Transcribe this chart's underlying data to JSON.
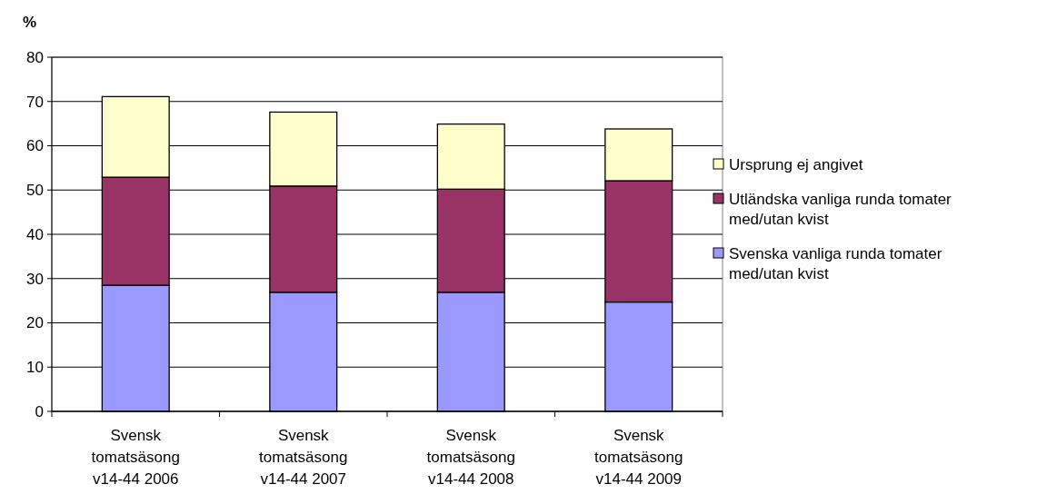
{
  "chart_data": {
    "type": "bar",
    "stacked": true,
    "ylabel": "%",
    "categories": [
      "Svensk tomatsäsong v14-44 2006",
      "Svensk tomatsäsong v14-44 2007",
      "Svensk tomatsäsong v14-44 2008",
      "Svensk tomatsäsong v14-44 2009"
    ],
    "series": [
      {
        "name": "Svenska vanliga runda tomater med/utan kvist",
        "color": "#9999ff",
        "values": [
          28.5,
          26.9,
          26.9,
          24.7
        ]
      },
      {
        "name": "Utländska vanliga runda tomater med/utan kvist",
        "color": "#993366",
        "values": [
          24.4,
          24.0,
          23.3,
          27.4
        ]
      },
      {
        "name": "Ursprung ej angivet",
        "color": "#ffffcc",
        "values": [
          18.2,
          16.7,
          14.7,
          11.7
        ]
      }
    ],
    "ylim": [
      0,
      80
    ],
    "yticks": [
      0,
      10,
      20,
      30,
      40,
      50,
      60,
      70,
      80
    ],
    "grid": "y",
    "legend": "right"
  }
}
